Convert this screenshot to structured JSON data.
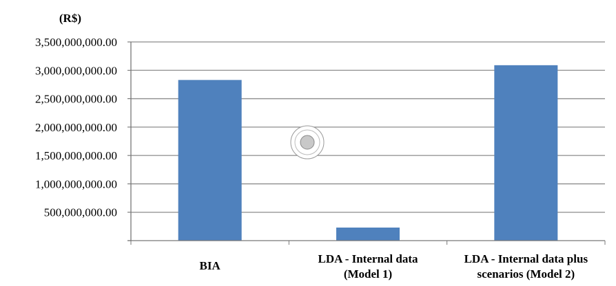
{
  "chart_data": {
    "type": "bar",
    "ylabel": "(R$)",
    "categories": [
      [
        "BIA"
      ],
      [
        "LDA - Internal data",
        "(Model 1)"
      ],
      [
        "LDA - Internal data plus",
        "scenarios (Model 2)"
      ]
    ],
    "values": [
      2830000000,
      230000000,
      3090000000
    ],
    "ylim": [
      0,
      3500000000
    ],
    "yticks": [
      500000000,
      1000000000,
      1500000000,
      2000000000,
      2500000000,
      3000000000,
      3500000000
    ],
    "ytick_labels": [
      "500,000,000.00",
      "1,000,000,000.00",
      "1,500,000,000.00",
      "2,000,000,000.00",
      "2,500,000,000.00",
      "3,000,000,000.00",
      "3,500,000,000.00"
    ],
    "grid": true,
    "bar_color": "#4f81bd",
    "grid_color": "#8c8c8c"
  }
}
